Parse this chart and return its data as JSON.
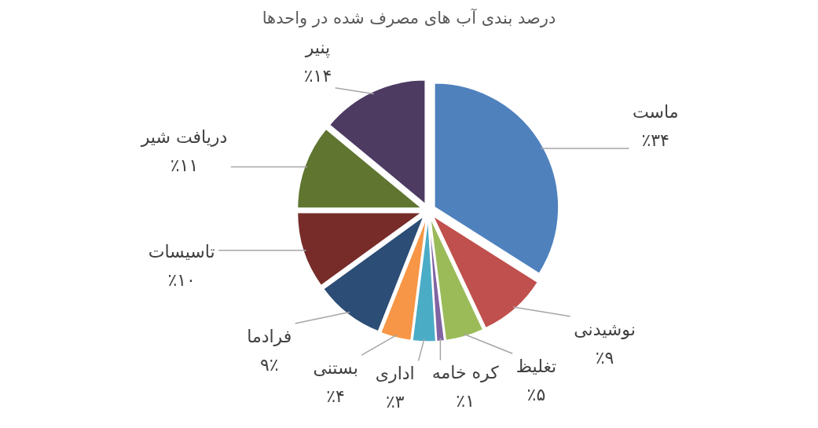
{
  "chart_data": {
    "type": "pie",
    "title": "درصد بندی آب های مصرف شده در واحدها",
    "categories": [
      "ماست",
      "نوشیدنی",
      "تغلیظ",
      "کره خامه",
      "اداری",
      "بستنی",
      "فرادما",
      "تاسیسات",
      "دریافت شیر",
      "پنیر"
    ],
    "values": [
      34,
      9,
      5,
      1,
      3,
      4,
      9,
      10,
      11,
      14
    ],
    "colors": [
      "#4f81bd",
      "#c0504d",
      "#9bbb59",
      "#8064a2",
      "#4bacc6",
      "#f79646",
      "#2c4d75",
      "#772c2a",
      "#5f7530",
      "#4d3b62"
    ],
    "value_labels": [
      "٪۳۴",
      "٪۹",
      "٪۵",
      "٪۱",
      "٪۳",
      "٪۴",
      "۹٪",
      "٪۱۰",
      "٪۱۱",
      "٪۱۴"
    ]
  }
}
